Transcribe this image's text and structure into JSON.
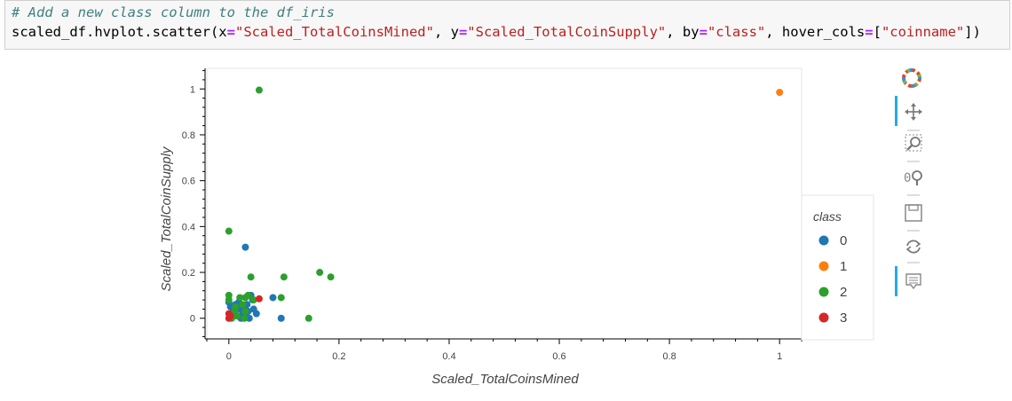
{
  "code": {
    "comment": "# Add a new class column to the df_iris",
    "line2": {
      "p1": "scaled_df.hvplot.scatter(x",
      "eq": "=",
      "xval": "\"Scaled_TotalCoinsMined\"",
      "p2": ", y",
      "yval": "\"Scaled_TotalCoinSupply\"",
      "p3": ", by",
      "byval": "\"class\"",
      "p4": ", hover_cols",
      "p5": "[",
      "hoverval": "\"coinname\"",
      "p6": "])"
    }
  },
  "toolbar": {
    "tools": [
      "bokeh-logo-icon",
      "pan-icon",
      "box-zoom-icon",
      "wheel-zoom-icon",
      "save-icon",
      "reset-icon",
      "hover-icon"
    ],
    "active_color": "#26aae1"
  },
  "chart_data": {
    "type": "scatter",
    "xlabel": "Scaled_TotalCoinsMined",
    "ylabel": "Scaled_TotalCoinSupply",
    "xlim": [
      -0.04,
      1.04
    ],
    "ylim": [
      -0.09,
      1.09
    ],
    "xticks": [
      "0",
      "0.2",
      "0.4",
      "0.6",
      "0.8",
      "1"
    ],
    "yticks": [
      "0",
      "0.2",
      "0.4",
      "0.6",
      "0.8",
      "1"
    ],
    "legend_title": "class",
    "legend_position": "right",
    "series": [
      {
        "name": "0",
        "color": "#1f77b4",
        "points": [
          [
            0.0,
            0.07
          ],
          [
            0.003,
            0.05
          ],
          [
            0.008,
            0.03
          ],
          [
            0.012,
            0.06
          ],
          [
            0.015,
            0.01
          ],
          [
            0.02,
            0.04
          ],
          [
            0.022,
            0.0
          ],
          [
            0.025,
            0.02
          ],
          [
            0.028,
            0.05
          ],
          [
            0.03,
            0.01
          ],
          [
            0.033,
            0.06
          ],
          [
            0.035,
            0.03
          ],
          [
            0.037,
            0.0
          ],
          [
            0.04,
            0.1
          ],
          [
            0.043,
            0.08
          ],
          [
            0.045,
            0.04
          ],
          [
            0.05,
            0.02
          ],
          [
            0.03,
            0.31
          ],
          [
            0.08,
            0.09
          ],
          [
            0.095,
            0.0
          ],
          [
            0.01,
            0.02
          ],
          [
            0.018,
            0.07
          ]
        ]
      },
      {
        "name": "1",
        "color": "#ff7f0e",
        "points": [
          [
            1.0,
            0.985
          ]
        ]
      },
      {
        "name": "2",
        "color": "#2ca02c",
        "points": [
          [
            0.055,
            0.995
          ],
          [
            0.0,
            0.38
          ],
          [
            0.0,
            0.1
          ],
          [
            0.0,
            0.08
          ],
          [
            0.005,
            0.0
          ],
          [
            0.01,
            0.03
          ],
          [
            0.015,
            0.01
          ],
          [
            0.02,
            0.09
          ],
          [
            0.025,
            0.06
          ],
          [
            0.028,
            0.0
          ],
          [
            0.03,
            0.09
          ],
          [
            0.035,
            0.1
          ],
          [
            0.04,
            0.18
          ],
          [
            0.045,
            0.08
          ],
          [
            0.1,
            0.18
          ],
          [
            0.095,
            0.09
          ],
          [
            0.165,
            0.2
          ],
          [
            0.185,
            0.18
          ],
          [
            0.145,
            0.0
          ],
          [
            0.03,
            0.03
          ],
          [
            0.012,
            0.05
          ]
        ]
      },
      {
        "name": "3",
        "color": "#d62728",
        "points": [
          [
            0.0,
            0.0
          ],
          [
            0.003,
            0.01
          ],
          [
            0.055,
            0.085
          ],
          [
            0.0,
            0.02
          ]
        ]
      }
    ]
  }
}
